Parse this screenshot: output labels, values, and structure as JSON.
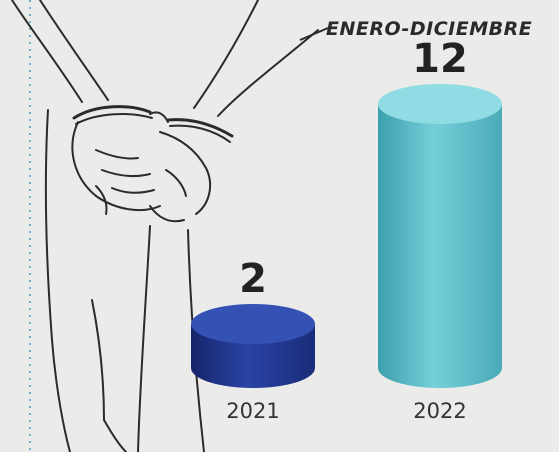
{
  "chart_data": {
    "type": "bar",
    "title": "",
    "period_label": "ENERO-DICIEMBRE",
    "categories": [
      "2021",
      "2022"
    ],
    "values": [
      2,
      12
    ],
    "xlabel": "",
    "ylabel": "",
    "grid": false,
    "legend": "none",
    "bar_colors": [
      "#253b93",
      "#67c4cf"
    ],
    "bar_shape": "cylinder"
  },
  "illustration": {
    "subject": "handcuffed-hands-sketch-icon"
  },
  "colors": {
    "background": "#ebebe9",
    "dotted_line": "#6fb3c8",
    "sketch_stroke": "#2b2b2b"
  }
}
